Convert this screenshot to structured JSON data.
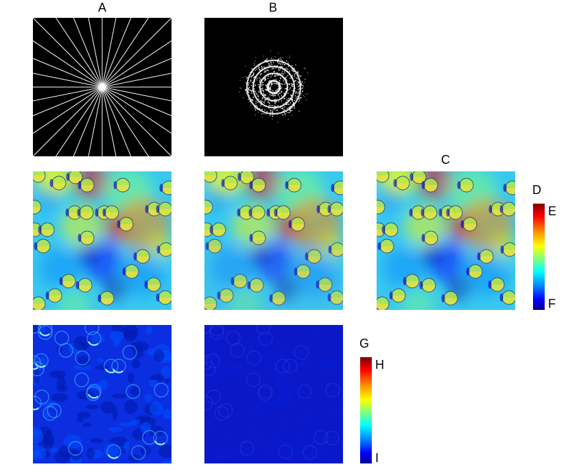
{
  "labels": {
    "a": "A",
    "b": "B",
    "c": "C",
    "d": "D",
    "e": "E",
    "f": "F",
    "g": "G",
    "h": "H",
    "i": "I"
  },
  "colormap": [
    "#00008f",
    "#0000ff",
    "#0080ff",
    "#00ffff",
    "#7fff7f",
    "#ffff00",
    "#ff8a00",
    "#ff0000",
    "#7f0000"
  ],
  "radial_lines": 16,
  "ring_count": 4
}
